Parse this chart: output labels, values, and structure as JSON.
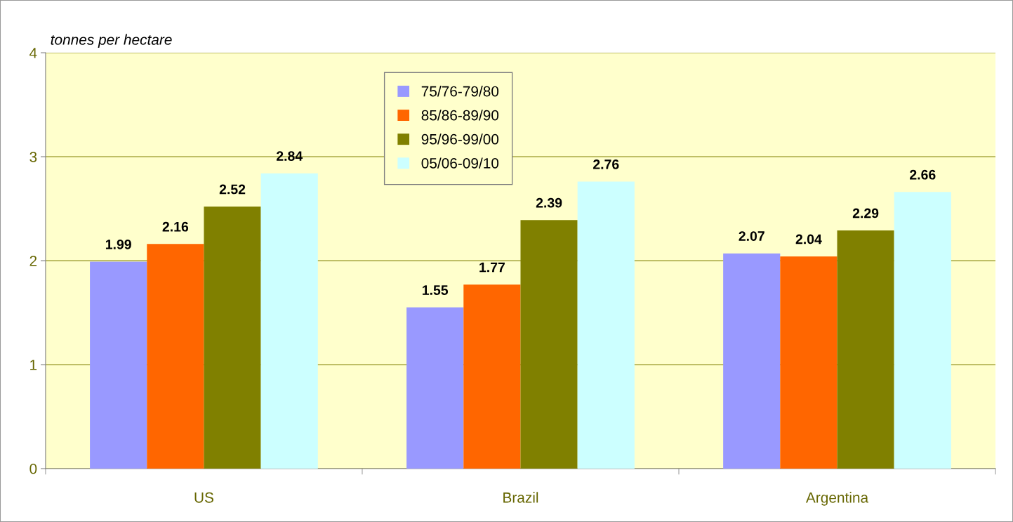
{
  "chart_data": {
    "type": "bar",
    "ylabel": "tonnes per hectare",
    "categories": [
      "US",
      "Brazil",
      "Argentina"
    ],
    "series": [
      {
        "name": "75/76-79/80",
        "color": "#9999ff",
        "values": [
          1.99,
          1.55,
          2.07
        ]
      },
      {
        "name": "85/86-89/90",
        "color": "#ff6600",
        "values": [
          2.16,
          1.77,
          2.04
        ]
      },
      {
        "name": "95/96-99/00",
        "color": "#808000",
        "values": [
          2.52,
          2.39,
          2.29
        ]
      },
      {
        "name": "05/06-09/10",
        "color": "#ccffff",
        "values": [
          2.84,
          2.76,
          2.66
        ]
      }
    ],
    "ylim": [
      0,
      4
    ],
    "yticks": [
      0,
      1,
      2,
      3,
      4
    ],
    "grid": "y",
    "legend": "top",
    "data_labels": true
  }
}
